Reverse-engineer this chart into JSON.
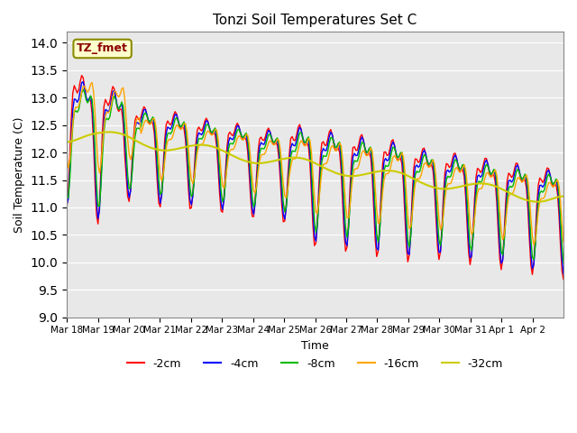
{
  "title": "Tonzi Soil Temperatures Set C",
  "xlabel": "Time",
  "ylabel": "Soil Temperature (C)",
  "ylim": [
    9.0,
    14.2
  ],
  "yticks": [
    9.0,
    9.5,
    10.0,
    10.5,
    11.0,
    11.5,
    12.0,
    12.5,
    13.0,
    13.5,
    14.0
  ],
  "colors": {
    "-2cm": "#FF0000",
    "-4cm": "#0000FF",
    "-8cm": "#00BB00",
    "-16cm": "#FFA500",
    "-32cm": "#CCCC00"
  },
  "legend_label": "TZ_fmet",
  "bg_color": "#E8E8E8",
  "n_points": 336,
  "start_day": 18,
  "end_day": 50
}
